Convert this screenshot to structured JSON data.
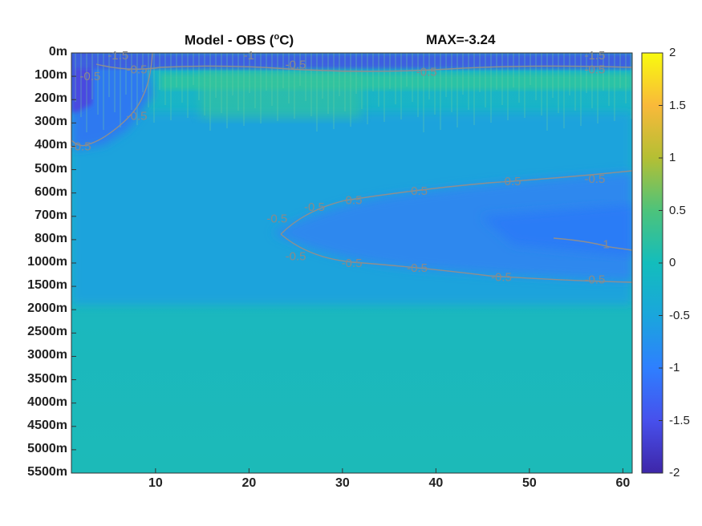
{
  "chart_data": {
    "type": "heatmap",
    "title": "Model - OBS (°C)",
    "title_main": "Model - OBS (",
    "title_sup": "o",
    "title_end": "C)",
    "annotation": "MAX=-3.24",
    "y_tick_labels": [
      "0m",
      "100m",
      "200m",
      "300m",
      "400m",
      "500m",
      "600m",
      "700m",
      "800m",
      "1000m",
      "1500m",
      "2000m",
      "2500m",
      "3000m",
      "3500m",
      "4000m",
      "4500m",
      "5000m",
      "5500m"
    ],
    "x_tick_labels": [
      "10",
      "20",
      "30",
      "40",
      "50",
      "60"
    ],
    "x_ticks": [
      10,
      20,
      30,
      40,
      50,
      60
    ],
    "xlim": [
      1,
      61
    ],
    "y_direction": "reversed",
    "colorbar": {
      "ticks": [
        2,
        1.5,
        1,
        0.5,
        0,
        -0.5,
        -1,
        -1.5,
        -2
      ],
      "tick_labels": [
        "2",
        "1.5",
        "1",
        "0.5",
        "0",
        "-0.5",
        "-1",
        "-1.5",
        "-2"
      ],
      "clim": [
        -2,
        2
      ],
      "colormap": "parula"
    },
    "contour_levels": [
      -1.5,
      -1,
      -0.5
    ],
    "contour_labels": [
      {
        "x": 3,
        "y_level": 1,
        "text": "-0.5"
      },
      {
        "x": 2,
        "y_level": 4,
        "text": "-0.5"
      },
      {
        "x": 6,
        "y_level": 0.1,
        "text": "-1.5"
      },
      {
        "x": 8,
        "y_level": 0.7,
        "text": "-0.5"
      },
      {
        "x": 20,
        "y_level": 0.1,
        "text": "-1"
      },
      {
        "x": 25,
        "y_level": 0.5,
        "text": "-0.5"
      },
      {
        "x": 39,
        "y_level": 0.8,
        "text": "-0.5"
      },
      {
        "x": 57,
        "y_level": 0.1,
        "text": "-1.5"
      },
      {
        "x": 57,
        "y_level": 0.7,
        "text": "-0.5"
      },
      {
        "x": 8,
        "y_level": 2.7,
        "text": "-0.5"
      },
      {
        "x": 23,
        "y_level": 7.1,
        "text": "-0.5"
      },
      {
        "x": 27,
        "y_level": 6.6,
        "text": "-0.5"
      },
      {
        "x": 31,
        "y_level": 6.3,
        "text": "-0.5"
      },
      {
        "x": 38,
        "y_level": 5.9,
        "text": "-0.5"
      },
      {
        "x": 48,
        "y_level": 5.5,
        "text": "-0.5"
      },
      {
        "x": 57,
        "y_level": 5.4,
        "text": "-0.5"
      },
      {
        "x": 25,
        "y_level": 8.7,
        "text": "-0.5"
      },
      {
        "x": 31,
        "y_level": 9.0,
        "text": "-0.5"
      },
      {
        "x": 38,
        "y_level": 9.2,
        "text": "-0.5"
      },
      {
        "x": 47,
        "y_level": 9.6,
        "text": "-0.5"
      },
      {
        "x": 57,
        "y_level": 9.7,
        "text": "-0.5"
      },
      {
        "x": 58,
        "y_level": 8.2,
        "text": "-1"
      }
    ]
  }
}
